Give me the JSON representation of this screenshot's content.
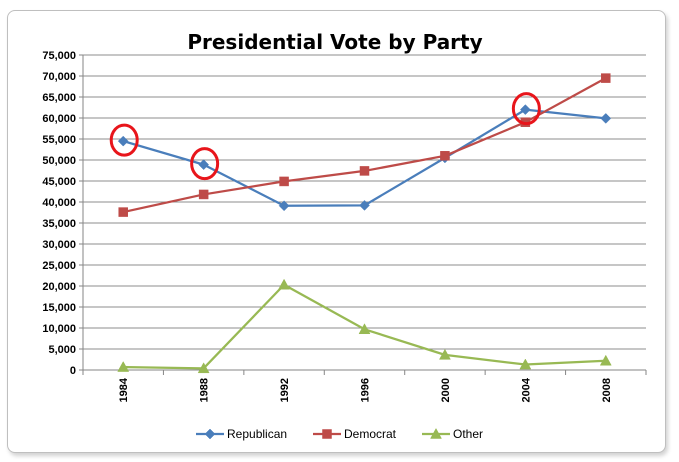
{
  "chart_data": {
    "type": "line",
    "title": "Presidential Vote by Party",
    "xlabel": "",
    "ylabel": "",
    "categories": [
      "1984",
      "1988",
      "1992",
      "1996",
      "2000",
      "2004",
      "2008"
    ],
    "ylim": [
      0,
      75000
    ],
    "yticks": [
      0,
      5000,
      10000,
      15000,
      20000,
      25000,
      30000,
      35000,
      40000,
      45000,
      50000,
      55000,
      60000,
      65000,
      70000,
      75000
    ],
    "ytick_labels": [
      "0",
      "5,000",
      "10,000",
      "15,000",
      "20,000",
      "25,000",
      "30,000",
      "35,000",
      "40,000",
      "45,000",
      "50,000",
      "55,000",
      "60,000",
      "65,000",
      "70,000",
      "75,000"
    ],
    "grid": true,
    "legend_position": "bottom",
    "series": [
      {
        "name": "Republican",
        "color": "#4a7ebb",
        "marker": "diamond",
        "values": [
          54500,
          48900,
          39100,
          39200,
          50500,
          62000,
          59900
        ]
      },
      {
        "name": "Democrat",
        "color": "#be4b48",
        "marker": "square",
        "values": [
          37600,
          41800,
          44900,
          47400,
          51000,
          59000,
          69500
        ]
      },
      {
        "name": "Other",
        "color": "#98b954",
        "marker": "triangle",
        "values": [
          700,
          400,
          20300,
          9700,
          3600,
          1300,
          2200
        ]
      }
    ],
    "annotations": [
      {
        "type": "circle",
        "series": "Republican",
        "category": "1984",
        "color": "#e8151b"
      },
      {
        "type": "circle",
        "series": "Republican",
        "category": "1988",
        "color": "#e8151b"
      },
      {
        "type": "circle",
        "series": "Republican",
        "category": "2004",
        "color": "#e8151b"
      }
    ]
  }
}
